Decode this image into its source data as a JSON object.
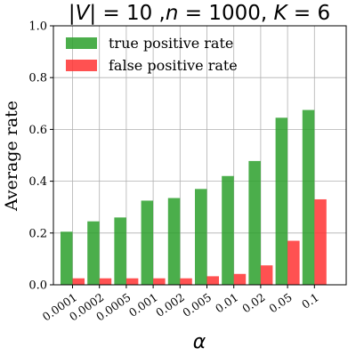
{
  "chart_data": {
    "type": "bar",
    "title": "|V| = 10 ,n = 1000, K = 6",
    "xlabel": "α",
    "ylabel": "Average rate",
    "categories": [
      "0.0001",
      "0.0002",
      "0.0005",
      "0.001",
      "0.002",
      "0.005",
      "0.01",
      "0.02",
      "0.05",
      "0.1"
    ],
    "ylim": [
      0,
      1.0
    ],
    "yticks": [
      "0.0",
      "0.2",
      "0.4",
      "0.6",
      "0.8",
      "1.0"
    ],
    "grid": true,
    "legend_position": "top-left",
    "series": [
      {
        "name": "true positive rate",
        "color": "#2ca02c",
        "values": [
          0.205,
          0.245,
          0.26,
          0.325,
          0.335,
          0.37,
          0.42,
          0.478,
          0.645,
          0.675
        ]
      },
      {
        "name": "false positive rate",
        "color": "#ff3333",
        "values": [
          0.025,
          0.025,
          0.025,
          0.025,
          0.025,
          0.033,
          0.042,
          0.075,
          0.17,
          0.33
        ]
      }
    ]
  }
}
